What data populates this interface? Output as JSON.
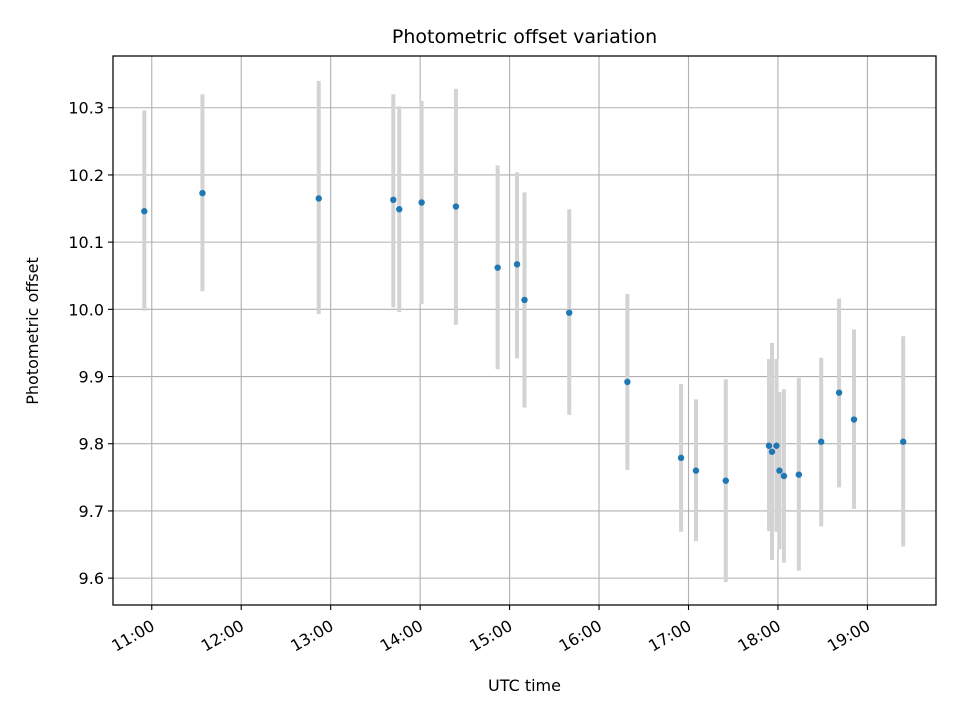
{
  "chart_data": {
    "type": "scatter",
    "title": "Photometric offset variation",
    "xlabel": "UTC time",
    "ylabel": "Photometric offset",
    "x_tick_labels": [
      "11:00",
      "12:00",
      "13:00",
      "14:00",
      "15:00",
      "16:00",
      "17:00",
      "18:00",
      "19:00"
    ],
    "y_tick_labels": [
      "9.6",
      "9.7",
      "9.8",
      "9.9",
      "10.0",
      "10.1",
      "10.2",
      "10.3"
    ],
    "x_ticks": [
      "11:00",
      "12:00",
      "13:00",
      "14:00",
      "15:00",
      "16:00",
      "17:00",
      "18:00",
      "19:00"
    ],
    "y_ticks": [
      9.6,
      9.7,
      9.8,
      9.9,
      10.0,
      10.1,
      10.2,
      10.3
    ],
    "xlim": [
      "10:34",
      "19:46"
    ],
    "ylim": [
      9.56,
      10.377
    ],
    "grid": true,
    "series": [
      {
        "marker_color": "#1f77b4",
        "errorbar_color": "#d3d3d3",
        "points": [
          {
            "x": "10:55",
            "y": 10.146,
            "ylow": 9.998,
            "yhigh": 10.296
          },
          {
            "x": "11:34",
            "y": 10.173,
            "ylow": 10.027,
            "yhigh": 10.32
          },
          {
            "x": "12:52",
            "y": 10.165,
            "ylow": 9.993,
            "yhigh": 10.34
          },
          {
            "x": "13:42",
            "y": 10.163,
            "ylow": 10.003,
            "yhigh": 10.32
          },
          {
            "x": "13:46",
            "y": 10.149,
            "ylow": 9.996,
            "yhigh": 10.302
          },
          {
            "x": "14:01",
            "y": 10.159,
            "ylow": 10.008,
            "yhigh": 10.31
          },
          {
            "x": "14:24",
            "y": 10.153,
            "ylow": 9.977,
            "yhigh": 10.328
          },
          {
            "x": "14:52",
            "y": 10.062,
            "ylow": 9.911,
            "yhigh": 10.214
          },
          {
            "x": "15:05",
            "y": 10.067,
            "ylow": 9.927,
            "yhigh": 10.204
          },
          {
            "x": "15:10",
            "y": 10.014,
            "ylow": 9.854,
            "yhigh": 10.174
          },
          {
            "x": "15:40",
            "y": 9.995,
            "ylow": 9.843,
            "yhigh": 10.149
          },
          {
            "x": "16:19",
            "y": 9.892,
            "ylow": 9.761,
            "yhigh": 10.023
          },
          {
            "x": "16:55",
            "y": 9.779,
            "ylow": 9.669,
            "yhigh": 9.889
          },
          {
            "x": "17:05",
            "y": 9.76,
            "ylow": 9.655,
            "yhigh": 9.866
          },
          {
            "x": "17:25",
            "y": 9.745,
            "ylow": 9.594,
            "yhigh": 9.896
          },
          {
            "x": "17:54",
            "y": 9.797,
            "ylow": 9.67,
            "yhigh": 9.926
          },
          {
            "x": "17:56",
            "y": 9.788,
            "ylow": 9.627,
            "yhigh": 9.95
          },
          {
            "x": "17:59",
            "y": 9.797,
            "ylow": 9.669,
            "yhigh": 9.926
          },
          {
            "x": "18:01",
            "y": 9.76,
            "ylow": 9.643,
            "yhigh": 9.877
          },
          {
            "x": "18:04",
            "y": 9.752,
            "ylow": 9.623,
            "yhigh": 9.881
          },
          {
            "x": "18:14",
            "y": 9.754,
            "ylow": 9.611,
            "yhigh": 9.898
          },
          {
            "x": "18:29",
            "y": 9.803,
            "ylow": 9.677,
            "yhigh": 9.928
          },
          {
            "x": "18:41",
            "y": 9.876,
            "ylow": 9.735,
            "yhigh": 10.016
          },
          {
            "x": "18:51",
            "y": 9.836,
            "ylow": 9.703,
            "yhigh": 9.97
          },
          {
            "x": "19:24",
            "y": 9.803,
            "ylow": 9.647,
            "yhigh": 9.96
          }
        ]
      }
    ]
  }
}
